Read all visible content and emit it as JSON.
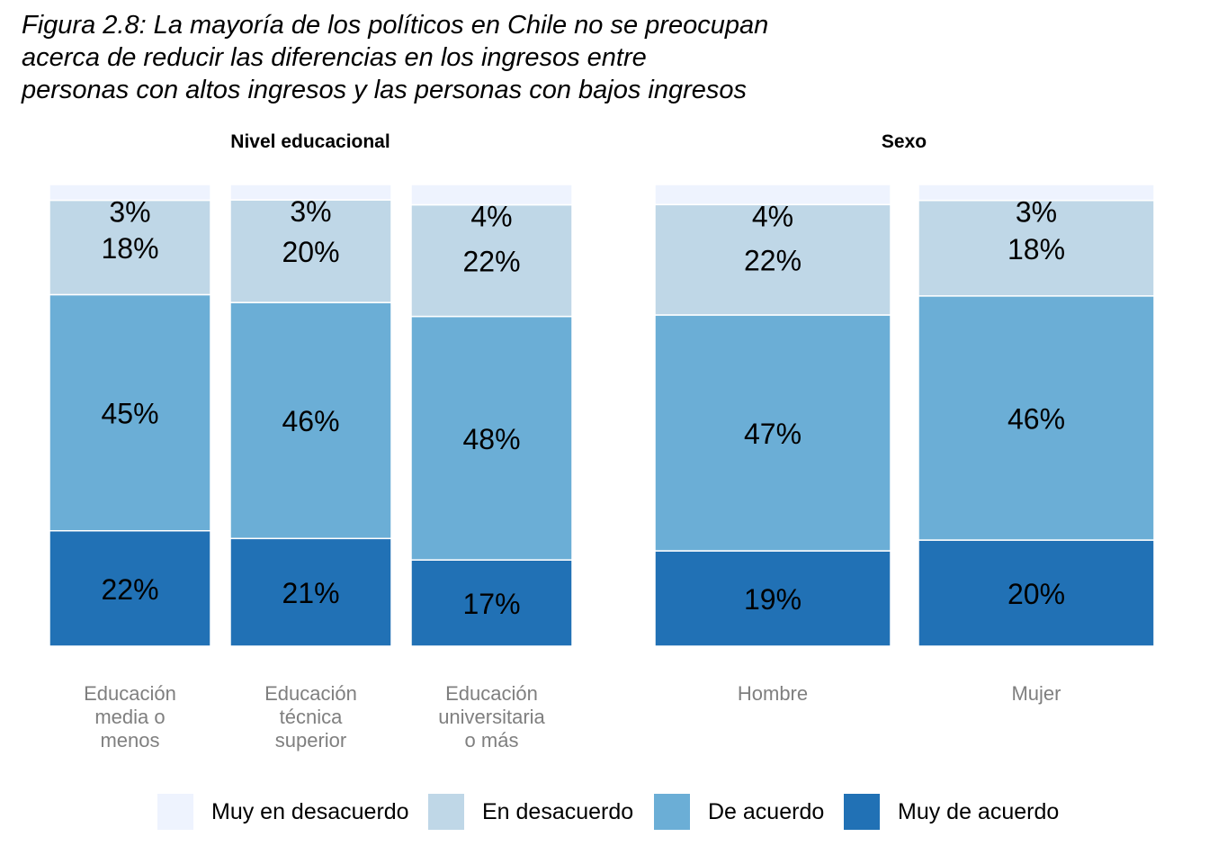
{
  "title_lines": [
    "Figura 2.8: La mayoría de los políticos en Chile no se preocupan",
    " acerca de reducir las diferencias en los ingresos entre",
    " personas con altos ingresos y las personas con bajos ingresos"
  ],
  "colors": {
    "muy_en_desacuerdo": "#EEF3FE",
    "en_desacuerdo": "#BFD7E7",
    "de_acuerdo": "#6BAED6",
    "muy_de_acuerdo": "#2171B5",
    "category_label": "#7f7f7f"
  },
  "chart_data": {
    "type": "bar",
    "stacked": true,
    "normalized": true,
    "ylim": [
      0,
      100
    ],
    "grid": false,
    "legend_position": "bottom",
    "segment_order_bottom_to_top": [
      "Muy de acuerdo",
      "De acuerdo",
      "En desacuerdo",
      "Muy en desacuerdo"
    ],
    "panels": [
      {
        "title": "Nivel educacional",
        "categories": [
          "Educación media o menos",
          "Educación técnica superior",
          "Educación universitaria o más"
        ],
        "category_label_lines": [
          [
            "Educación",
            "media o",
            "menos"
          ],
          [
            "Educación",
            "técnica",
            "superior"
          ],
          [
            "Educación",
            "universitaria",
            "o más"
          ]
        ],
        "series": [
          {
            "name": "Muy de acuerdo",
            "values": [
              22,
              21,
              17
            ],
            "labels": [
              "22%",
              "21%",
              "17%"
            ]
          },
          {
            "name": "De acuerdo",
            "values": [
              45,
              46,
              48
            ],
            "labels": [
              "45%",
              "46%",
              "48%"
            ]
          },
          {
            "name": "En desacuerdo",
            "values": [
              18,
              20,
              22
            ],
            "labels": [
              "18%",
              "20%",
              "22%"
            ]
          },
          {
            "name": "Muy en desacuerdo",
            "values": [
              3,
              3,
              4
            ],
            "labels": [
              "3%",
              "3%",
              "4%"
            ]
          }
        ]
      },
      {
        "title": "Sexo",
        "categories": [
          "Hombre",
          "Mujer"
        ],
        "category_label_lines": [
          [
            "Hombre"
          ],
          [
            "Mujer"
          ]
        ],
        "series": [
          {
            "name": "Muy de acuerdo",
            "values": [
              19,
              20
            ],
            "labels": [
              "19%",
              "20%"
            ]
          },
          {
            "name": "De acuerdo",
            "values": [
              47,
              46
            ],
            "labels": [
              "47%",
              "46%"
            ]
          },
          {
            "name": "En desacuerdo",
            "values": [
              22,
              18
            ],
            "labels": [
              "22%",
              "18%"
            ]
          },
          {
            "name": "Muy en desacuerdo",
            "values": [
              4,
              3
            ],
            "labels": [
              "4%",
              "3%"
            ]
          }
        ]
      }
    ]
  },
  "legend": [
    {
      "label": "Muy en desacuerdo",
      "color_key": "muy_en_desacuerdo"
    },
    {
      "label": "En desacuerdo",
      "color_key": "en_desacuerdo"
    },
    {
      "label": "De acuerdo",
      "color_key": "de_acuerdo"
    },
    {
      "label": "Muy de acuerdo",
      "color_key": "muy_de_acuerdo"
    }
  ]
}
